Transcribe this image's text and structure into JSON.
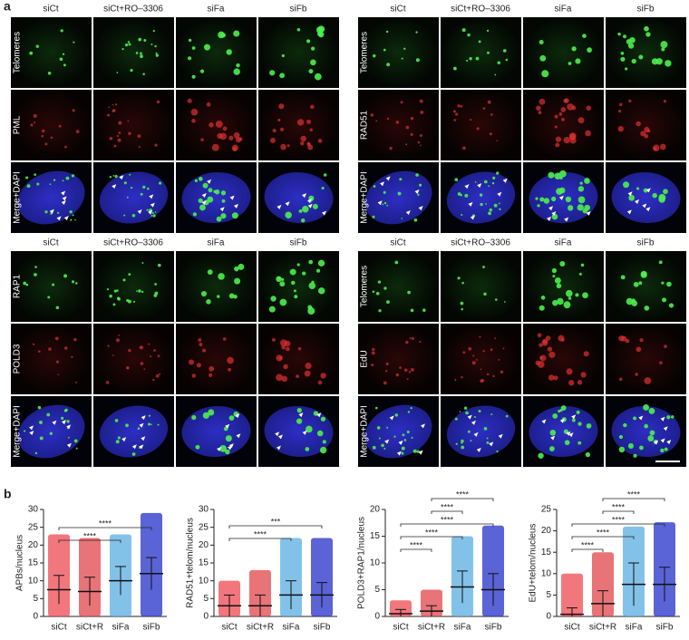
{
  "panel_a": {
    "label": "a",
    "grids": [
      {
        "columns": [
          "siCt",
          "siCt+RO–3306",
          "siFa",
          "siFb"
        ],
        "rows": [
          "Telomeres",
          "PML",
          "Merge+DAPI"
        ]
      },
      {
        "columns": [
          "siCt",
          "siCt+RO–3306",
          "siFa",
          "siFb"
        ],
        "rows": [
          "Telomeres",
          "RAD51",
          "Merge+DAPI"
        ]
      },
      {
        "columns": [
          "siCt",
          "siCt+RO–3306",
          "siFa",
          "siFb"
        ],
        "rows": [
          "RAP1",
          "POLD3",
          "Merge+DAPI"
        ]
      },
      {
        "columns": [
          "siCt",
          "siCt+RO–3306",
          "siFa",
          "siFb"
        ],
        "rows": [
          "Telomeres",
          "EdU",
          "Merge+DAPI"
        ]
      }
    ]
  },
  "panel_b": {
    "label": "b"
  },
  "chart_data": [
    {
      "type": "dotplot",
      "ylabel": "APBs/nucleus",
      "categories": [
        "siCt",
        "siCt+R",
        "siFa",
        "siFb"
      ],
      "colors": [
        "#ee4a50",
        "#e0464a",
        "#5aaee0",
        "#2330c8"
      ],
      "means": [
        7.5,
        7,
        10,
        12
      ],
      "sd": [
        4,
        4,
        4,
        4.5
      ],
      "max": [
        23,
        22,
        23,
        29
      ],
      "ylim": [
        0,
        30
      ],
      "yticks": [
        0,
        5,
        10,
        15,
        20,
        25,
        30
      ],
      "brackets": [
        {
          "from": 0,
          "to": 3,
          "label": "****"
        },
        {
          "from": 0,
          "to": 2,
          "label": "****"
        }
      ]
    },
    {
      "type": "dotplot",
      "ylabel": "RAD51+telom/nucleus",
      "categories": [
        "siCt",
        "siCt+R",
        "siFa",
        "siFb"
      ],
      "colors": [
        "#ee4a50",
        "#e0464a",
        "#5aaee0",
        "#2330c8"
      ],
      "means": [
        3,
        3,
        6,
        6
      ],
      "sd": [
        3,
        3,
        4,
        3.5
      ],
      "max": [
        10,
        13,
        22,
        22
      ],
      "ylim": [
        0,
        30
      ],
      "yticks": [
        0,
        5,
        10,
        15,
        20,
        25,
        30
      ],
      "brackets": [
        {
          "from": 0,
          "to": 3,
          "label": "***"
        },
        {
          "from": 0,
          "to": 2,
          "label": "****"
        }
      ]
    },
    {
      "type": "dotplot",
      "ylabel": "POLD3+RAP1/nucleus",
      "categories": [
        "siCt",
        "siCt+R",
        "siFa",
        "siFb"
      ],
      "colors": [
        "#ee4a50",
        "#e0464a",
        "#5aaee0",
        "#2330c8"
      ],
      "means": [
        0.5,
        1,
        5.5,
        5
      ],
      "sd": [
        0.8,
        1,
        3,
        3
      ],
      "max": [
        3,
        5,
        15,
        17
      ],
      "ylim": [
        0,
        20
      ],
      "yticks": [
        0,
        5,
        10,
        15,
        20
      ],
      "brackets": [
        {
          "from": 1,
          "to": 3,
          "label": "****"
        },
        {
          "from": 1,
          "to": 2,
          "label": "****"
        },
        {
          "from": 0,
          "to": 3,
          "label": "****"
        },
        {
          "from": 0,
          "to": 2,
          "label": "****"
        },
        {
          "from": 0,
          "to": 1,
          "label": "****"
        }
      ]
    },
    {
      "type": "dotplot",
      "ylabel": "EdU+telom/nucleus",
      "categories": [
        "siCt",
        "siCt+R",
        "siFa",
        "siFb"
      ],
      "colors": [
        "#ee4a50",
        "#e0464a",
        "#5aaee0",
        "#2330c8"
      ],
      "means": [
        0.5,
        3,
        7.5,
        7.5
      ],
      "sd": [
        1.5,
        3,
        5,
        4
      ],
      "max": [
        10,
        15,
        21,
        22
      ],
      "ylim": [
        0,
        25
      ],
      "yticks": [
        0,
        5,
        10,
        15,
        20,
        25
      ],
      "brackets": [
        {
          "from": 1,
          "to": 3,
          "label": "****"
        },
        {
          "from": 1,
          "to": 2,
          "label": "****"
        },
        {
          "from": 0,
          "to": 3,
          "label": "****"
        },
        {
          "from": 0,
          "to": 2,
          "label": "****"
        },
        {
          "from": 0,
          "to": 1,
          "label": "****"
        }
      ]
    }
  ]
}
